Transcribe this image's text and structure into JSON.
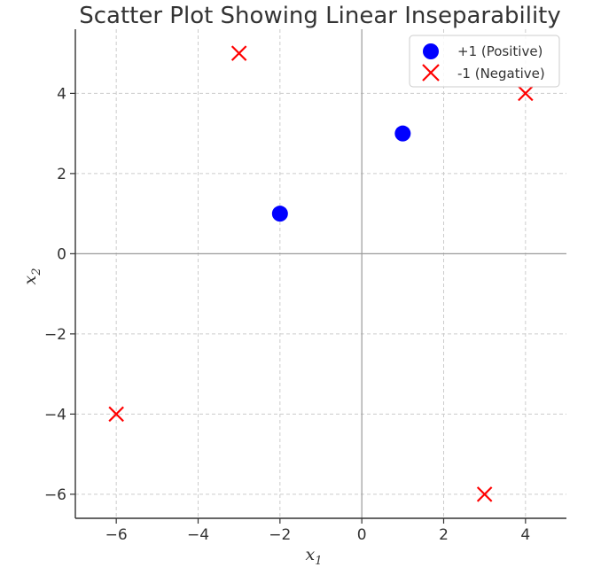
{
  "chart_data": {
    "type": "scatter",
    "title": "Scatter Plot Showing Linear Inseparability",
    "xlabel": "x",
    "xlabel_sub": "1",
    "ylabel": "x",
    "ylabel_sub": "2",
    "xlim": [
      -7,
      5
    ],
    "ylim": [
      -6.6,
      5.6
    ],
    "xticks": [
      -6,
      -4,
      -2,
      0,
      2,
      4
    ],
    "yticks": [
      -6,
      -4,
      -2,
      0,
      2,
      4
    ],
    "xtick_labels": [
      "−6",
      "−4",
      "−2",
      "0",
      "2",
      "4"
    ],
    "ytick_labels": [
      "−6",
      "−4",
      "−2",
      "0",
      "2",
      "4"
    ],
    "grid": true,
    "legend_position": "top-right",
    "series": [
      {
        "name": "+1 (Positive)",
        "marker": "circle",
        "color": "#0000ff",
        "points": [
          [
            -2,
            1
          ],
          [
            1,
            3
          ]
        ]
      },
      {
        "name": "-1 (Negative)",
        "marker": "x",
        "color": "#ff0000",
        "points": [
          [
            -3,
            5
          ],
          [
            4,
            4
          ],
          [
            -6,
            -4
          ],
          [
            3,
            -6
          ]
        ]
      }
    ]
  }
}
